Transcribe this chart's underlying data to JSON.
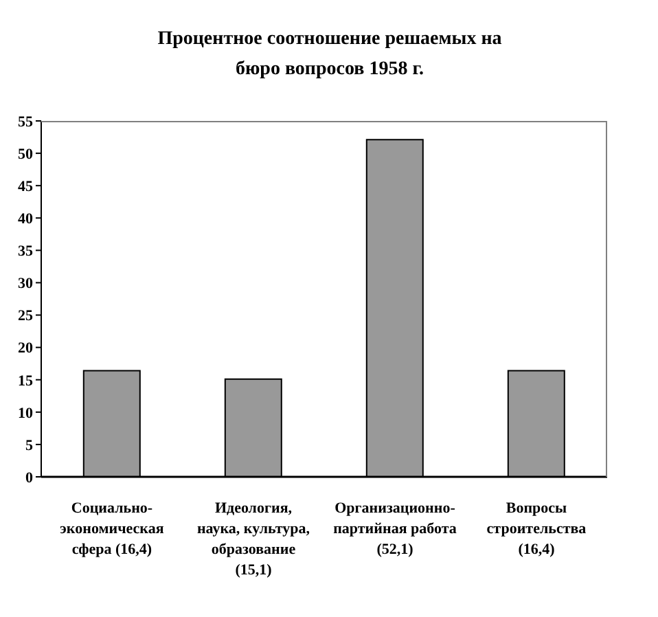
{
  "chart_data": {
    "type": "bar",
    "title": "Процентное соотношение решаемых на бюро вопросов 1958 г.",
    "categories": [
      "Социально-экономическая сфера (16,4)",
      "Идеология, наука, культура, образование (15,1)",
      "Организационно-партийная работа (52,1)",
      "Вопросы строительства (16,4)"
    ],
    "values": [
      16.4,
      15.1,
      52.1,
      16.4
    ],
    "color": "#999999",
    "ylim": [
      0,
      55
    ],
    "yticks": [
      0,
      5,
      10,
      15,
      20,
      25,
      30,
      35,
      40,
      45,
      50,
      55
    ],
    "grid": false,
    "legend": false
  }
}
